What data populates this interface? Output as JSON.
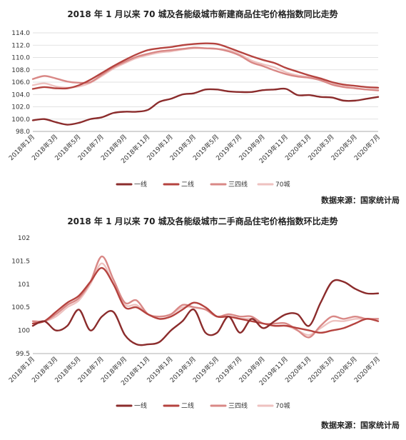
{
  "chart_data": [
    {
      "type": "line",
      "title": "2018 年 1 月以来 70 城及各能级城市新建商品住宅价格指数同比走势",
      "source": "数据来源：国家统计局",
      "ylim": [
        98.0,
        114.0
      ],
      "yticks": [
        "114.0",
        "112.0",
        "110.0",
        "108.0",
        "106.0",
        "104.0",
        "102.0",
        "100.0",
        "98.0"
      ],
      "ytick_values": [
        114,
        112,
        110,
        108,
        106,
        104,
        102,
        100,
        98
      ],
      "categories": [
        "2018年1月",
        "2018年2月",
        "2018年3月",
        "2018年4月",
        "2018年5月",
        "2018年6月",
        "2018年7月",
        "2018年8月",
        "2018年9月",
        "2018年10月",
        "2018年11月",
        "2018年12月",
        "2019年1月",
        "2019年2月",
        "2019年3月",
        "2019年4月",
        "2019年5月",
        "2019年6月",
        "2019年7月",
        "2019年8月",
        "2019年9月",
        "2019年10月",
        "2019年11月",
        "2019年12月",
        "2020年1月",
        "2020年2月",
        "2020年3月",
        "2020年4月",
        "2020年5月",
        "2020年6月",
        "2020年7月"
      ],
      "xtick_labels": [
        "2018年1月",
        "2018年3月",
        "2018年5月",
        "2018年7月",
        "2018年9月",
        "2018年11月",
        "2019年1月",
        "2019年3月",
        "2019年5月",
        "2019年7月",
        "2019年9月",
        "2019年11月",
        "2020年1月",
        "2020年3月",
        "2020年5月",
        "2020年7月"
      ],
      "legend": "bottom",
      "grid": true,
      "series": [
        {
          "name": "一线",
          "color": "#8b2c2c",
          "values": [
            99.8,
            100.0,
            99.5,
            99.1,
            99.4,
            100.0,
            100.3,
            101.0,
            101.2,
            101.2,
            101.5,
            102.8,
            103.3,
            104.0,
            104.2,
            104.8,
            104.8,
            104.5,
            104.4,
            104.4,
            104.7,
            104.8,
            104.9,
            103.9,
            103.9,
            103.6,
            103.5,
            103.0,
            103.0,
            103.3,
            103.6
          ]
        },
        {
          "name": "二线",
          "color": "#b5433f",
          "values": [
            104.9,
            105.2,
            105.0,
            105.0,
            105.5,
            106.4,
            107.5,
            108.6,
            109.6,
            110.5,
            111.2,
            111.5,
            111.7,
            112.0,
            112.2,
            112.3,
            112.2,
            111.6,
            110.9,
            110.2,
            109.6,
            109.1,
            108.3,
            107.7,
            107.1,
            106.6,
            106.0,
            105.6,
            105.4,
            105.2,
            105.1
          ]
        },
        {
          "name": "三四线",
          "color": "#d98886",
          "values": [
            106.5,
            107.0,
            106.6,
            106.1,
            105.9,
            106.0,
            107.2,
            108.4,
            109.3,
            110.1,
            110.6,
            111.0,
            111.2,
            111.4,
            111.6,
            111.5,
            111.4,
            111.0,
            110.3,
            109.2,
            108.6,
            107.9,
            107.3,
            106.9,
            106.7,
            106.3,
            105.6,
            105.2,
            105.0,
            104.8,
            104.7
          ]
        },
        {
          "name": "70城",
          "color": "#eec2c0",
          "values": [
            105.5,
            105.8,
            105.3,
            105.1,
            105.3,
            105.9,
            107.0,
            108.2,
            109.1,
            109.9,
            110.4,
            110.8,
            111.0,
            111.3,
            111.5,
            111.5,
            111.4,
            111.2,
            110.5,
            109.5,
            108.9,
            108.4,
            107.6,
            107.1,
            106.8,
            106.4,
            105.7,
            105.3,
            105.0,
            104.8,
            104.6
          ]
        }
      ]
    },
    {
      "type": "line",
      "title": "2018 年 1 月以来 70 城及各能级城市二手商品住宅价格指数环比走势",
      "source": "数据来源：国家统计局",
      "ylim": [
        99.5,
        102.0
      ],
      "yticks": [
        "102",
        "101.5",
        "101",
        "100.5",
        "100",
        "99.5"
      ],
      "ytick_values": [
        102,
        101.5,
        101,
        100.5,
        100,
        99.5
      ],
      "categories": [
        "2018年1月",
        "2018年2月",
        "2018年3月",
        "2018年4月",
        "2018年5月",
        "2018年6月",
        "2018年7月",
        "2018年8月",
        "2018年9月",
        "2018年10月",
        "2018年11月",
        "2018年12月",
        "2019年1月",
        "2019年2月",
        "2019年3月",
        "2019年4月",
        "2019年5月",
        "2019年6月",
        "2019年7月",
        "2019年8月",
        "2019年9月",
        "2019年10月",
        "2019年11月",
        "2019年12月",
        "2020年1月",
        "2020年2月",
        "2020年3月",
        "2020年4月",
        "2020年5月",
        "2020年6月",
        "2020年7月"
      ],
      "xtick_labels": [
        "2018年1月",
        "2018年3月",
        "2018年5月",
        "2018年7月",
        "2018年9月",
        "2018年11月",
        "2019年1月",
        "2019年3月",
        "2019年5月",
        "2019年7月",
        "2019年9月",
        "2019年11月",
        "2020年1月",
        "2020年3月",
        "2020年5月",
        "2020年7月"
      ],
      "legend": "bottom",
      "grid": false,
      "series": [
        {
          "name": "一线",
          "color": "#8b2c2c",
          "values": [
            100.1,
            100.2,
            100.0,
            100.1,
            100.45,
            100.0,
            100.3,
            100.4,
            99.9,
            99.7,
            99.7,
            99.75,
            100.0,
            100.2,
            100.45,
            99.95,
            99.95,
            100.3,
            99.95,
            100.25,
            100.05,
            100.2,
            100.35,
            100.35,
            100.1,
            100.6,
            101.05,
            101.05,
            100.9,
            100.8,
            100.8
          ]
        },
        {
          "name": "二线",
          "color": "#b5433f",
          "values": [
            100.15,
            100.2,
            100.4,
            100.6,
            100.75,
            101.05,
            101.35,
            101.0,
            100.5,
            100.5,
            100.35,
            100.25,
            100.3,
            100.45,
            100.6,
            100.5,
            100.3,
            100.3,
            100.25,
            100.2,
            100.15,
            100.1,
            100.1,
            100.05,
            100.0,
            99.95,
            100.0,
            100.05,
            100.15,
            100.25,
            100.2
          ]
        },
        {
          "name": "三四线",
          "color": "#d98886",
          "values": [
            100.2,
            100.2,
            100.35,
            100.55,
            100.7,
            101.05,
            101.6,
            101.1,
            100.6,
            100.65,
            100.35,
            100.3,
            100.35,
            100.55,
            100.5,
            100.45,
            100.3,
            100.35,
            100.3,
            100.3,
            100.15,
            100.15,
            100.15,
            100.0,
            99.85,
            100.1,
            100.3,
            100.25,
            100.3,
            100.25,
            100.25
          ]
        },
        {
          "name": "70城",
          "color": "#eec2c0",
          "values": [
            100.2,
            100.2,
            100.3,
            100.5,
            100.65,
            101.0,
            101.45,
            101.0,
            100.55,
            100.55,
            100.35,
            100.3,
            100.35,
            100.5,
            100.5,
            100.45,
            100.3,
            100.3,
            100.25,
            100.25,
            100.15,
            100.1,
            100.1,
            100.0,
            99.9,
            100.05,
            100.2,
            100.2,
            100.25,
            100.25,
            100.25
          ]
        }
      ]
    }
  ]
}
